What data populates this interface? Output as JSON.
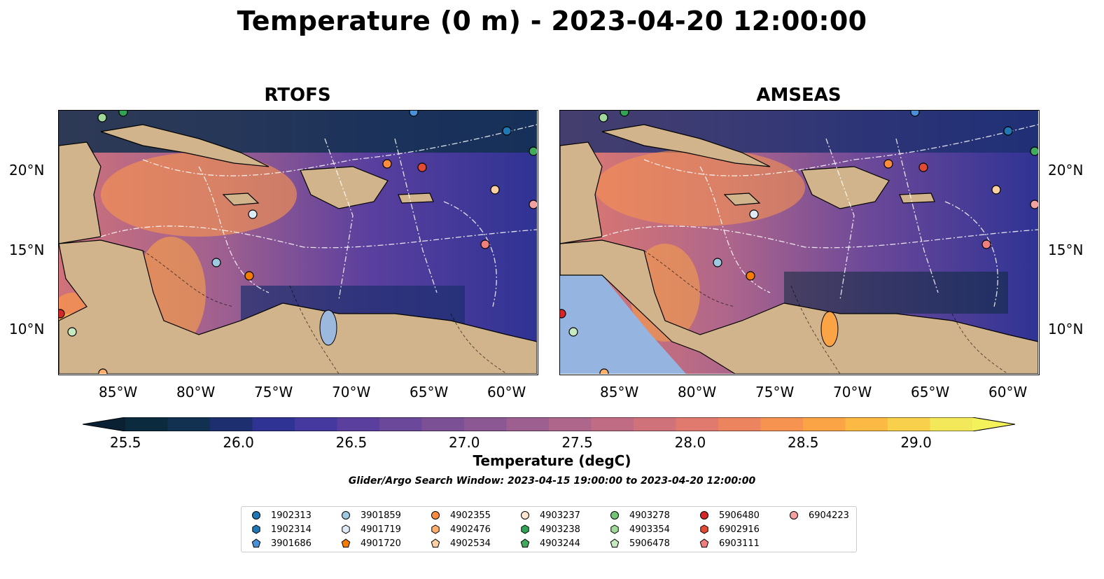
{
  "title": "Temperature (0 m) - 2023-04-20 12:00:00",
  "panels": [
    {
      "title": "RTOFS"
    },
    {
      "title": "AMSEAS"
    }
  ],
  "lon_ticks": [
    "85°W",
    "80°W",
    "75°W",
    "70°W",
    "65°W",
    "60°W"
  ],
  "lat_ticks": [
    "20°N",
    "15°N",
    "10°N"
  ],
  "colorbar": {
    "label": "Temperature (degC)",
    "ticks": [
      "25.5",
      "26.0",
      "26.5",
      "27.0",
      "27.5",
      "28.0",
      "28.5",
      "29.0"
    ],
    "colors": [
      "#0c2a3d",
      "#12304f",
      "#1d2f6e",
      "#2f3394",
      "#45389e",
      "#5a3f9e",
      "#6b4899",
      "#7c5095",
      "#8c5893",
      "#9d5f90",
      "#ae668b",
      "#bf6c84",
      "#d0727a",
      "#e0796e",
      "#ec8460",
      "#f69350",
      "#fba445",
      "#fcb944",
      "#f9d04b",
      "#f2e85a"
    ]
  },
  "search_window": "Glider/Argo Search Window: 2023-04-15 19:00:00 to 2023-04-20 12:00:00",
  "legend": [
    {
      "id": "1902313",
      "color": "#1f77b4",
      "marker": "circle"
    },
    {
      "id": "1902314",
      "color": "#1f77b4",
      "marker": "hexagon"
    },
    {
      "id": "3901686",
      "color": "#4a90d9",
      "marker": "pentagon"
    },
    {
      "id": "3901859",
      "color": "#9ecae1",
      "marker": "circle"
    },
    {
      "id": "4901719",
      "color": "#deebf7",
      "marker": "hexagon"
    },
    {
      "id": "4901720",
      "color": "#f47c00",
      "marker": "pentagon"
    },
    {
      "id": "4902355",
      "color": "#fd8d3c",
      "marker": "circle"
    },
    {
      "id": "4902476",
      "color": "#fdae6b",
      "marker": "hexagon"
    },
    {
      "id": "4902534",
      "color": "#fdd0a2",
      "marker": "pentagon"
    },
    {
      "id": "4903237",
      "color": "#fee6ce",
      "marker": "circle"
    },
    {
      "id": "4903238",
      "color": "#31a354",
      "marker": "hexagon"
    },
    {
      "id": "4903244",
      "color": "#41ab5d",
      "marker": "pentagon"
    },
    {
      "id": "4903278",
      "color": "#74c476",
      "marker": "circle"
    },
    {
      "id": "4903354",
      "color": "#a1d99b",
      "marker": "hexagon"
    },
    {
      "id": "5906478",
      "color": "#c7e9c0",
      "marker": "pentagon"
    },
    {
      "id": "5906480",
      "color": "#d62728",
      "marker": "circle"
    },
    {
      "id": "6902916",
      "color": "#e34a33",
      "marker": "hexagon"
    },
    {
      "id": "6903111",
      "color": "#f08080",
      "marker": "pentagon"
    },
    {
      "id": "6904223",
      "color": "#f4a0a0",
      "marker": "circle"
    }
  ]
}
